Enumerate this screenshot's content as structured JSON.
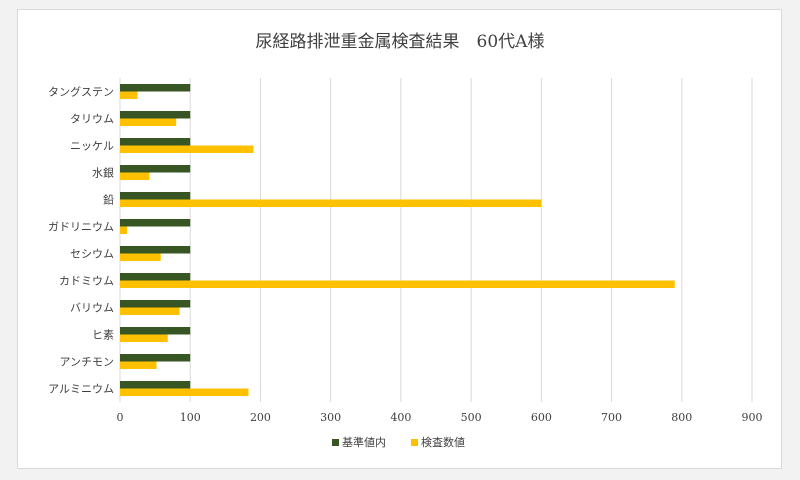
{
  "chart_data": {
    "type": "bar",
    "orientation": "horizontal",
    "title": "尿経路排泄重金属検査結果　60代A様",
    "xlabel": "",
    "ylabel": "",
    "xlim": [
      0,
      900
    ],
    "x_ticks": [
      0,
      100,
      200,
      300,
      400,
      500,
      600,
      700,
      800,
      900
    ],
    "grid": true,
    "legend_position": "bottom",
    "categories": [
      "タングステン",
      "タリウム",
      "ニッケル",
      "水銀",
      "鉛",
      "ガドリニウム",
      "セシウム",
      "カドミウム",
      "バリウム",
      "ヒ素",
      "アンチモン",
      "アルミニウム"
    ],
    "series": [
      {
        "name": "基準値内",
        "color": "#375623",
        "values": [
          100,
          100,
          100,
          100,
          100,
          100,
          100,
          100,
          100,
          100,
          100,
          100
        ]
      },
      {
        "name": "検査数値",
        "color": "#ffc000",
        "values": [
          25,
          80,
          190,
          42,
          600,
          10,
          58,
          790,
          85,
          68,
          52,
          183
        ]
      }
    ]
  }
}
